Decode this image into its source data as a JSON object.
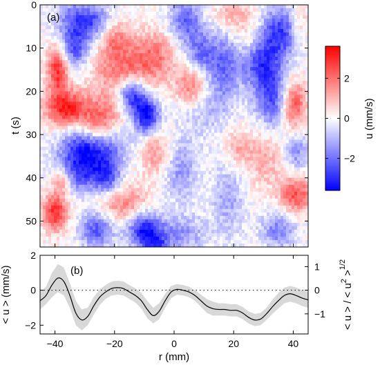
{
  "chart_data": [
    {
      "panel": "(a)",
      "type": "heatmap",
      "xlabel": "",
      "ylabel": "t (s)",
      "xlim": [
        -45,
        45
      ],
      "ylim": [
        0,
        56
      ],
      "y_reversed": true,
      "yticks": [
        "0",
        "10",
        "20",
        "30",
        "40",
        "50"
      ],
      "yticks_values": [
        0,
        10,
        20,
        30,
        40,
        50
      ],
      "xticks_values": [
        -40,
        -20,
        0,
        20,
        40
      ],
      "colorbar": {
        "label": "u (mm/s)",
        "range": [
          -3.6,
          3.6
        ],
        "ticks": [
          "2",
          "0",
          "−2"
        ],
        "ticks_values": [
          2,
          0,
          -2
        ],
        "colormap": "blue-white-red",
        "colors": {
          "low": "#0000ff",
          "mid": "#ffffff",
          "high": "#ff0000"
        }
      },
      "blobs": [
        {
          "r": -39,
          "t": 15,
          "u": 3.0,
          "sr": 2.5,
          "st": 4
        },
        {
          "r": -36,
          "t": 24,
          "u": 3.2,
          "sr": 5,
          "st": 3
        },
        {
          "r": -40,
          "t": 48,
          "u": 3.0,
          "sr": 3,
          "st": 3
        },
        {
          "r": -38,
          "t": 41,
          "u": 1.8,
          "sr": 2,
          "st": 2
        },
        {
          "r": -30,
          "t": 34,
          "u": -3.4,
          "sr": 6,
          "st": 4
        },
        {
          "r": -34,
          "t": 5,
          "u": -2.0,
          "sr": 4,
          "st": 5
        },
        {
          "r": -33,
          "t": 11,
          "u": -1.5,
          "sr": 3,
          "st": 3
        },
        {
          "r": -26,
          "t": 28,
          "u": 1.8,
          "sr": 4,
          "st": 3
        },
        {
          "r": -22,
          "t": 24,
          "u": 1.2,
          "sr": 5,
          "st": 3
        },
        {
          "r": -27,
          "t": 4,
          "u": -2.2,
          "sr": 4,
          "st": 3
        },
        {
          "r": -30,
          "t": 40,
          "u": -1.5,
          "sr": 5,
          "st": 3
        },
        {
          "r": -22,
          "t": 40,
          "u": -2.0,
          "sr": 3,
          "st": 3
        },
        {
          "r": -20,
          "t": 8,
          "u": 1.6,
          "sr": 4,
          "st": 3
        },
        {
          "r": -16,
          "t": 15,
          "u": 2.0,
          "sr": 8,
          "st": 4
        },
        {
          "r": -6,
          "t": 11,
          "u": 1.4,
          "sr": 5,
          "st": 4
        },
        {
          "r": -17,
          "t": 46,
          "u": 1.8,
          "sr": 6,
          "st": 3
        },
        {
          "r": -26,
          "t": 52,
          "u": -2.4,
          "sr": 4,
          "st": 3
        },
        {
          "r": -14,
          "t": 21,
          "u": -3.2,
          "sr": 3.5,
          "st": 3
        },
        {
          "r": -9,
          "t": 26,
          "u": -3.4,
          "sr": 3,
          "st": 3
        },
        {
          "r": -20,
          "t": 33,
          "u": -1.0,
          "sr": 5,
          "st": 3
        },
        {
          "r": -6,
          "t": 34,
          "u": 1.5,
          "sr": 4,
          "st": 4
        },
        {
          "r": -10,
          "t": 52,
          "u": -3.2,
          "sr": 4,
          "st": 3
        },
        {
          "r": -6,
          "t": 56,
          "u": -2.0,
          "sr": 3,
          "st": 2
        },
        {
          "r": 4,
          "t": 4,
          "u": -2.2,
          "sr": 4,
          "st": 4
        },
        {
          "r": 9,
          "t": 11,
          "u": -1.6,
          "sr": 3,
          "st": 3
        },
        {
          "r": 6,
          "t": 19,
          "u": 2.0,
          "sr": 4,
          "st": 3
        },
        {
          "r": 10,
          "t": 24,
          "u": -0.8,
          "sr": 6,
          "st": 5
        },
        {
          "r": 2,
          "t": 38,
          "u": -1.5,
          "sr": 4,
          "st": 5
        },
        {
          "r": 2,
          "t": 53,
          "u": -1.5,
          "sr": 6,
          "st": 3
        },
        {
          "r": 20,
          "t": 2,
          "u": 1.3,
          "sr": 5,
          "st": 3
        },
        {
          "r": 16,
          "t": 14,
          "u": -2.0,
          "sr": 4,
          "st": 6
        },
        {
          "r": 21,
          "t": 33,
          "u": 1.0,
          "sr": 3,
          "st": 3
        },
        {
          "r": 18,
          "t": 45,
          "u": -1.2,
          "sr": 4,
          "st": 6
        },
        {
          "r": 26,
          "t": 8,
          "u": 1.4,
          "sr": 4,
          "st": 3
        },
        {
          "r": 29,
          "t": 12,
          "u": -2.8,
          "sr": 5,
          "st": 5
        },
        {
          "r": 33,
          "t": 22,
          "u": -2.4,
          "sr": 4,
          "st": 5
        },
        {
          "r": 30,
          "t": 35,
          "u": 1.2,
          "sr": 5,
          "st": 5
        },
        {
          "r": 36,
          "t": 6,
          "u": -2.4,
          "sr": 4,
          "st": 4
        },
        {
          "r": 40,
          "t": 23,
          "u": 2.6,
          "sr": 3,
          "st": 4
        },
        {
          "r": 41,
          "t": 44,
          "u": 2.4,
          "sr": 4,
          "st": 3
        },
        {
          "r": 41,
          "t": 34,
          "u": -1.6,
          "sr": 3,
          "st": 3
        },
        {
          "r": 35,
          "t": 52,
          "u": -1.8,
          "sr": 4,
          "st": 3
        },
        {
          "r": 42,
          "t": 4,
          "u": 1.0,
          "sr": 2,
          "st": 3
        }
      ]
    },
    {
      "panel": "(b)",
      "type": "line",
      "xlabel": "r (mm)",
      "ylabel": "< u > (mm/s)",
      "ylabel_right": "< u > / < u² >¹ᐟ²",
      "ylabel_right_parts": {
        "main": "< u > / < u",
        "sup1": "2",
        "after": " >",
        "sup2": "1/2"
      },
      "xlim": [
        -45,
        45
      ],
      "ylim": [
        -2.5,
        2
      ],
      "xticks": [
        "−40",
        "−20",
        "0",
        "20",
        "40"
      ],
      "xticks_values": [
        -40,
        -20,
        0,
        20,
        40
      ],
      "yticks": [
        "2",
        "0",
        "−2"
      ],
      "yticks_values": [
        2,
        0,
        -2
      ],
      "yticks_right": [
        "1",
        "0",
        "−1"
      ],
      "yticks_right_data_positions": [
        1.35,
        0,
        -1.35
      ],
      "zero_line": "dotted",
      "series": [
        {
          "x": [
            -45,
            -43,
            -41,
            -39,
            -37,
            -35,
            -33,
            -31,
            -29,
            -27,
            -25,
            -23,
            -21,
            -19,
            -17,
            -15,
            -13,
            -11,
            -9,
            -7,
            -5,
            -3,
            -1,
            1,
            3,
            5,
            7,
            9,
            11,
            13,
            15,
            17,
            19,
            21,
            23,
            25,
            27,
            29,
            31,
            33,
            35,
            37,
            39,
            41,
            43,
            45
          ],
          "y": [
            -0.6,
            -0.3,
            0.3,
            0.7,
            0.5,
            -0.3,
            -1.3,
            -1.7,
            -1.5,
            -0.9,
            -0.4,
            -0.1,
            0.1,
            0.15,
            0.1,
            -0.1,
            -0.3,
            -0.6,
            -1.1,
            -1.45,
            -1.2,
            -0.6,
            -0.1,
            0.05,
            0.0,
            -0.1,
            -0.3,
            -0.6,
            -0.9,
            -1.05,
            -1.1,
            -1.1,
            -1.15,
            -1.15,
            -1.3,
            -1.55,
            -1.7,
            -1.65,
            -1.35,
            -0.95,
            -0.6,
            -0.3,
            -0.2,
            -0.3,
            -0.45,
            -0.55
          ],
          "band": [
            0.5,
            0.5,
            0.7,
            0.8,
            0.8,
            0.7,
            0.7,
            0.6,
            0.5,
            0.5,
            0.45,
            0.4,
            0.4,
            0.4,
            0.4,
            0.4,
            0.4,
            0.45,
            0.5,
            0.45,
            0.45,
            0.4,
            0.35,
            0.3,
            0.3,
            0.3,
            0.3,
            0.35,
            0.4,
            0.4,
            0.35,
            0.35,
            0.35,
            0.35,
            0.35,
            0.35,
            0.35,
            0.35,
            0.35,
            0.4,
            0.45,
            0.45,
            0.45,
            0.45,
            0.45,
            0.45
          ],
          "line_color": "#000000",
          "band_color": "#d8d8d8"
        }
      ]
    }
  ]
}
